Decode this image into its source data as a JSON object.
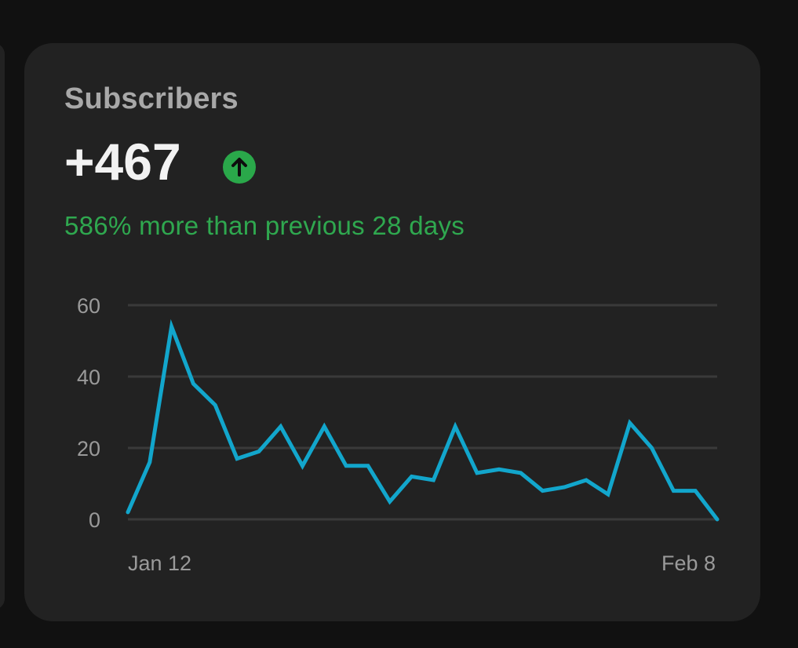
{
  "card": {
    "title": "Subscribers",
    "value": "+467",
    "trend_icon": "arrow-up-circle-icon",
    "delta_text": "586% more than previous 28 days"
  },
  "colors": {
    "line": "#12a6cc",
    "positive": "#2aa84a",
    "grid": "#3a3a3a"
  },
  "chart_data": {
    "type": "line",
    "title": "",
    "xlabel": "",
    "ylabel": "",
    "ylim": [
      0,
      60
    ],
    "yticks": [
      0,
      20,
      40,
      60
    ],
    "xtick_labels": [
      "Jan 12",
      "Feb 8"
    ],
    "grid": true,
    "x": [
      "Jan 12",
      "Jan 13",
      "Jan 14",
      "Jan 15",
      "Jan 16",
      "Jan 17",
      "Jan 18",
      "Jan 19",
      "Jan 20",
      "Jan 21",
      "Jan 22",
      "Jan 23",
      "Jan 24",
      "Jan 25",
      "Jan 26",
      "Jan 27",
      "Jan 28",
      "Jan 29",
      "Jan 30",
      "Jan 31",
      "Feb 1",
      "Feb 2",
      "Feb 3",
      "Feb 4",
      "Feb 5",
      "Feb 6",
      "Feb 7",
      "Feb 8"
    ],
    "values": [
      2,
      16,
      54,
      38,
      32,
      17,
      19,
      26,
      15,
      26,
      15,
      15,
      5,
      12,
      11,
      26,
      13,
      14,
      13,
      8,
      9,
      11,
      7,
      27,
      20,
      8,
      8,
      0
    ]
  }
}
